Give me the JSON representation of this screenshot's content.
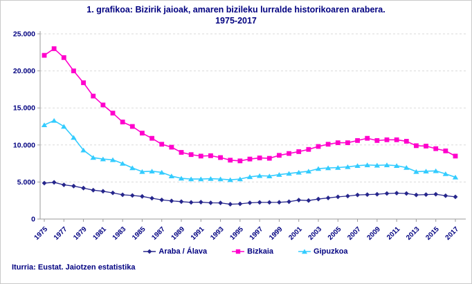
{
  "colors": {
    "text_navy": "#000080",
    "grid": "#dadada",
    "axis": "#9a9a9a",
    "background": "#ffffff"
  },
  "chart_data": {
    "type": "line",
    "title": "1. grafikoa: Bizirik jaioak, amaren bizileku lurralde historikoaren arabera.",
    "subtitle": "1975-2017",
    "xlabel": "",
    "ylabel": "",
    "ylim": [
      0,
      25000
    ],
    "grid": "horizontal-dashed",
    "legend_position": "bottom",
    "source": "Iturria: Eustat. Jaiotzen estatistika",
    "y_ticks": [
      0,
      5000,
      10000,
      15000,
      20000,
      25000
    ],
    "y_tick_labels": [
      "0",
      "5.000",
      "10.000",
      "15.000",
      "20.000",
      "25.000"
    ],
    "x_tick_labels": [
      "1975",
      "1977",
      "1979",
      "1981",
      "1983",
      "1985",
      "1987",
      "1989",
      "1991",
      "1993",
      "1995",
      "1997",
      "1999",
      "2001",
      "2003",
      "2005",
      "2007",
      "2009",
      "2011",
      "2013",
      "2015",
      "2017"
    ],
    "x": [
      1975,
      1976,
      1977,
      1978,
      1979,
      1980,
      1981,
      1982,
      1983,
      1984,
      1985,
      1986,
      1987,
      1988,
      1989,
      1990,
      1991,
      1992,
      1993,
      1994,
      1995,
      1996,
      1997,
      1998,
      1999,
      2000,
      2001,
      2002,
      2003,
      2004,
      2005,
      2006,
      2007,
      2008,
      2009,
      2010,
      2011,
      2012,
      2013,
      2014,
      2015,
      2016,
      2017
    ],
    "series": [
      {
        "id": "araba-alava",
        "name": "Araba / Álava",
        "color": "#26268c",
        "marker": "diamond",
        "line_width": 1.3,
        "values": [
          4850,
          4950,
          4620,
          4450,
          4180,
          3900,
          3750,
          3530,
          3280,
          3180,
          3060,
          2810,
          2590,
          2450,
          2350,
          2250,
          2280,
          2190,
          2180,
          2000,
          2050,
          2190,
          2250,
          2250,
          2260,
          2340,
          2560,
          2500,
          2700,
          2850,
          3000,
          3100,
          3250,
          3300,
          3350,
          3450,
          3500,
          3450,
          3250,
          3300,
          3350,
          3150,
          3000
        ]
      },
      {
        "id": "bizkaia",
        "name": "Bizkaia",
        "color": "#ff00cc",
        "marker": "square",
        "line_width": 1.6,
        "values": [
          22100,
          23000,
          21800,
          20000,
          18400,
          16600,
          15400,
          14300,
          13100,
          12500,
          11600,
          10900,
          10100,
          9700,
          9000,
          8700,
          8500,
          8550,
          8300,
          7950,
          7850,
          8100,
          8250,
          8200,
          8600,
          8850,
          9100,
          9400,
          9800,
          10100,
          10300,
          10300,
          10600,
          10900,
          10600,
          10700,
          10700,
          10500,
          9900,
          9850,
          9500,
          9200,
          8500
        ]
      },
      {
        "id": "gipuzkoa",
        "name": "Gipuzkoa",
        "color": "#33ccff",
        "marker": "triangle",
        "line_width": 1.6,
        "values": [
          12700,
          13300,
          12500,
          11000,
          9300,
          8300,
          8100,
          8000,
          7500,
          6900,
          6400,
          6450,
          6300,
          5800,
          5500,
          5400,
          5400,
          5450,
          5400,
          5300,
          5400,
          5700,
          5850,
          5800,
          6000,
          6150,
          6300,
          6450,
          6800,
          6900,
          6950,
          7050,
          7200,
          7300,
          7250,
          7300,
          7200,
          6950,
          6400,
          6450,
          6500,
          6100,
          5650
        ]
      }
    ]
  }
}
